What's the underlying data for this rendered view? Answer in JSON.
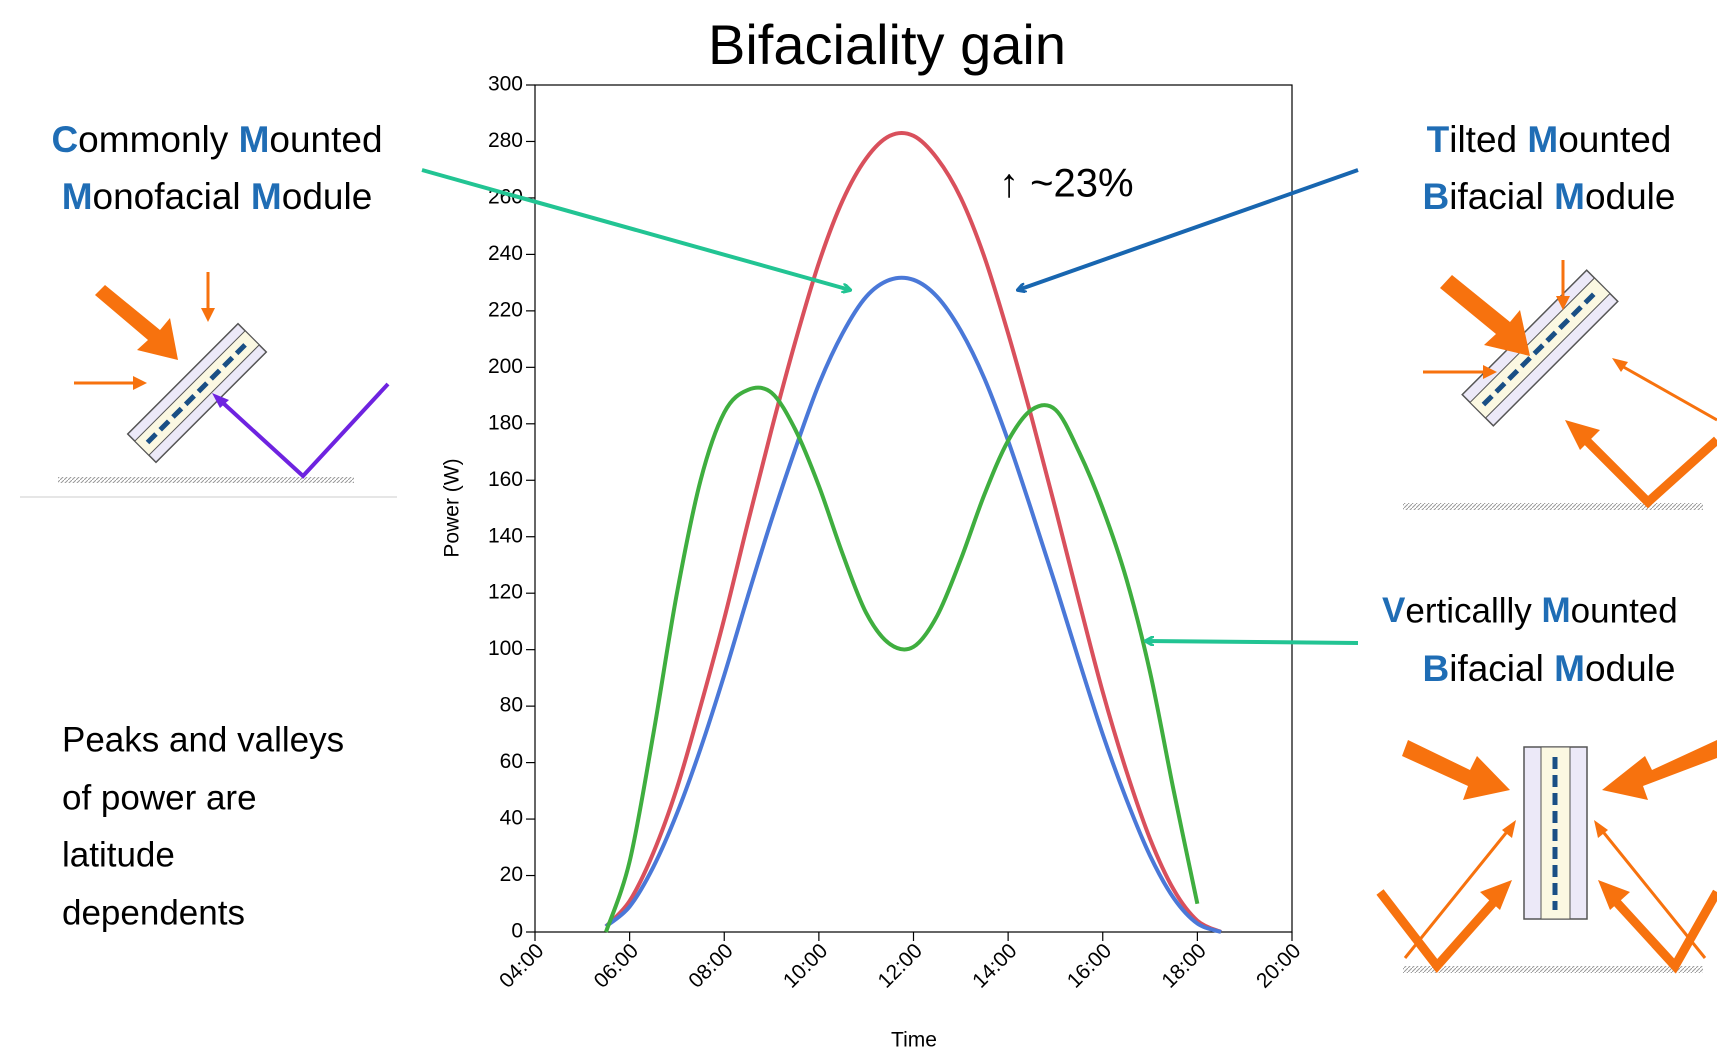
{
  "chart_data": {
    "type": "line",
    "title": "Bifaciality gain",
    "x_label": "Time",
    "y_label": "Power (W)",
    "annotation": "↑ ~23%",
    "x": [
      5,
      5.5,
      6,
      6.5,
      7,
      7.5,
      8,
      8.5,
      9,
      9.5,
      10,
      10.5,
      11,
      11.5,
      12,
      12.5,
      13,
      13.5,
      14,
      14.5,
      15,
      15.5,
      16,
      16.5,
      17,
      17.5,
      18,
      18.5
    ],
    "xlim": [
      4,
      20
    ],
    "xticks": [
      {
        "value": 4,
        "label": "04:00"
      },
      {
        "value": 6,
        "label": "06:00"
      },
      {
        "value": 8,
        "label": "08:00"
      },
      {
        "value": 10,
        "label": "10:00"
      },
      {
        "value": 12,
        "label": "12:00"
      },
      {
        "value": 14,
        "label": "14:00"
      },
      {
        "value": 16,
        "label": "16:00"
      },
      {
        "value": 18,
        "label": "18:00"
      },
      {
        "value": 20,
        "label": "20:00"
      }
    ],
    "ylim": [
      0,
      300
    ],
    "yticks": [
      0,
      20,
      40,
      60,
      80,
      100,
      120,
      140,
      160,
      180,
      200,
      220,
      240,
      260,
      280,
      300
    ],
    "series": [
      {
        "color": "#d9505c",
        "values": [
          null,
          2,
          11,
          28,
          51,
          80,
          111,
          145,
          178,
          209,
          237,
          259,
          274,
          282,
          282,
          274,
          260,
          239,
          212,
          182,
          150,
          117,
          85,
          57,
          33,
          15,
          4,
          0
        ]
      },
      {
        "color": "#4a78d8",
        "values": [
          null,
          2,
          9,
          23,
          42,
          65,
          91,
          119,
          146,
          171,
          194,
          212,
          225,
          231,
          231,
          225,
          213,
          196,
          174,
          149,
          123,
          96,
          70,
          47,
          27,
          12,
          3,
          0
        ]
      },
      {
        "color": "#3fae3f",
        "values": [
          null,
          0,
          25,
          70,
          120,
          160,
          184,
          192,
          191,
          178,
          158,
          134,
          113,
          102,
          101,
          112,
          132,
          155,
          174,
          185,
          185,
          170,
          150,
          125,
          92,
          50,
          10,
          null
        ]
      }
    ]
  },
  "labels": {
    "monofacial": [
      "Commonly Mounted",
      "Monofacial Module"
    ],
    "tilted": [
      "Tilted Mounted",
      "Bifacial Module"
    ],
    "vertical": [
      "Verticallly Mounted",
      "Bifacial Module"
    ],
    "note": [
      "Peaks and valleys",
      "of power are",
      "latitude",
      "dependents"
    ]
  }
}
